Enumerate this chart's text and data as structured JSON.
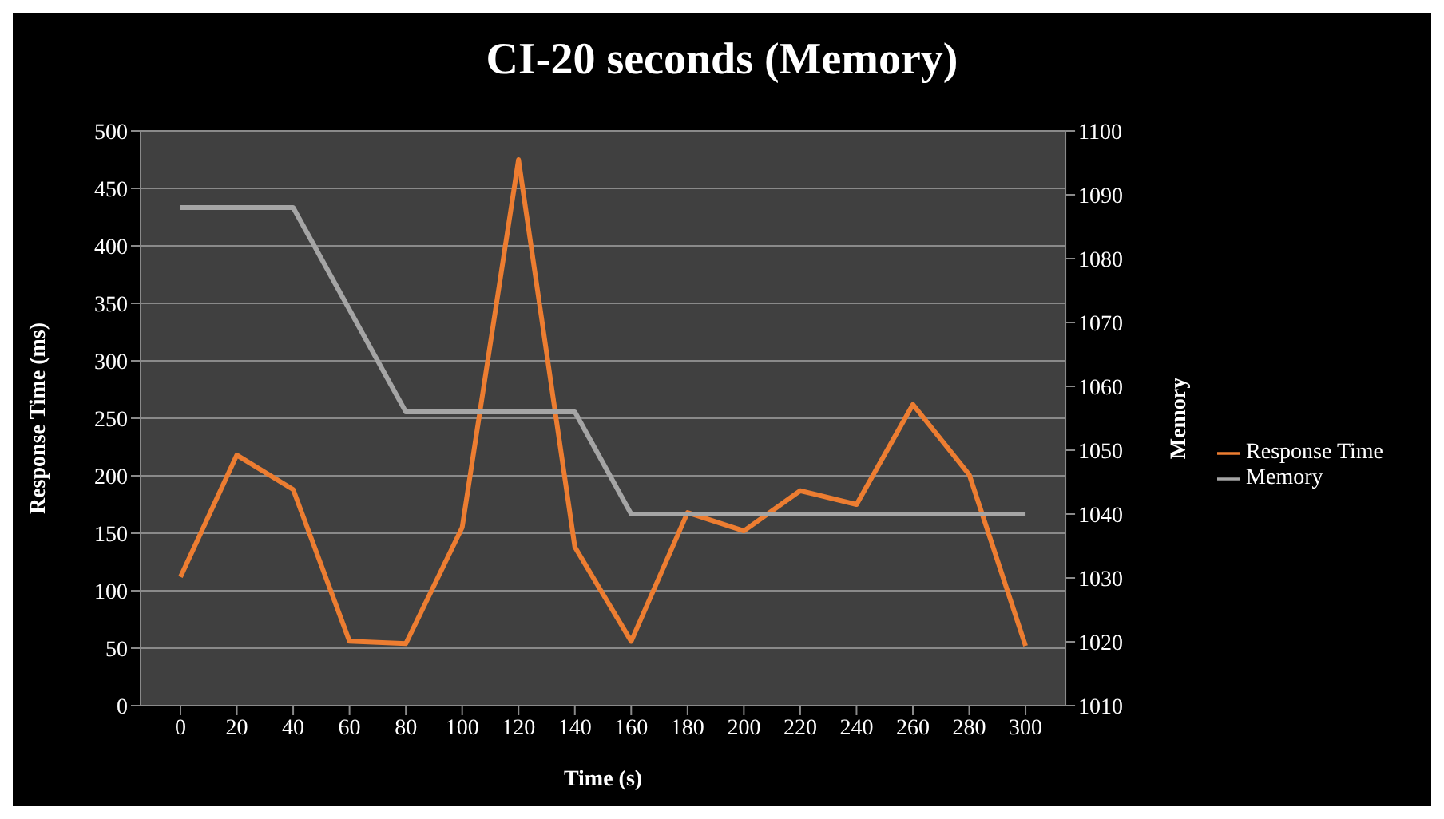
{
  "chart_data": {
    "type": "line",
    "title": "CI-20 seconds (Memory)",
    "xlabel": "Time (s)",
    "ylabel": "Response Time (ms)",
    "y2label": "Memory",
    "categories": [
      "0",
      "20",
      "40",
      "60",
      "80",
      "100",
      "120",
      "140",
      "160",
      "180",
      "200",
      "220",
      "240",
      "260",
      "280",
      "300"
    ],
    "series": [
      {
        "name": "Response Time",
        "color": "#ed7d31",
        "values": [
          112,
          218,
          188,
          56,
          54,
          155,
          475,
          138,
          56,
          168,
          152,
          187,
          175,
          262,
          201,
          52
        ]
      },
      {
        "name": "Memory",
        "color": "#a5a5a5",
        "axis": "y2",
        "values": [
          1088,
          1088,
          1088,
          1072,
          1056,
          1056,
          1056,
          1056,
          1040,
          1040,
          1040,
          1040,
          1040,
          1040,
          1040,
          1040
        ]
      }
    ],
    "ylim": [
      0,
      500
    ],
    "yticks": [
      0,
      50,
      100,
      150,
      200,
      250,
      300,
      350,
      400,
      450,
      500
    ],
    "y2lim": [
      1010,
      1100
    ],
    "y2ticks": [
      1010,
      1020,
      1030,
      1040,
      1050,
      1060,
      1070,
      1080,
      1090,
      1100
    ],
    "grid": "y",
    "legend": "right",
    "marker": "none",
    "line_style": "solid"
  }
}
